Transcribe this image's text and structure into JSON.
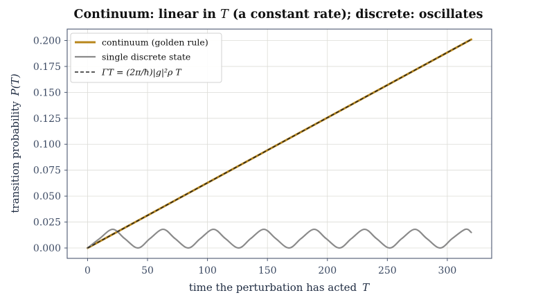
{
  "chart_data": {
    "type": "line",
    "title": "Continuum: linear in T (a constant rate); discrete: oscillates",
    "title_parts": [
      "Continuum: linear in ",
      "T",
      " (a constant rate); discrete: oscillates"
    ],
    "xlabel": "time the perturbation has acted",
    "xlabel_symbol": "T",
    "ylabel": "transition probability",
    "ylabel_symbol": "P(T)",
    "xlim": [
      -17,
      337
    ],
    "ylim": [
      -0.01,
      0.211
    ],
    "xticks": [
      0,
      50,
      100,
      150,
      200,
      250,
      300
    ],
    "yticks": [
      0.0,
      0.025,
      0.05,
      0.075,
      0.1,
      0.125,
      0.15,
      0.175,
      0.2
    ],
    "xtick_labels": [
      "0",
      "50",
      "100",
      "150",
      "200",
      "250",
      "300"
    ],
    "ytick_labels": [
      "0.000",
      "0.025",
      "0.050",
      "0.075",
      "0.100",
      "0.125",
      "0.150",
      "0.175",
      "0.200"
    ],
    "grid": true,
    "legend_position": "top-left",
    "series": [
      {
        "name": "continuum (golden rule)",
        "color": "#b8861b",
        "style": "solid",
        "x": [
          0,
          320
        ],
        "y": [
          0.0,
          0.201
        ]
      },
      {
        "name": "single discrete state",
        "color": "#8a8a8a",
        "style": "solid",
        "x": [
          0,
          10,
          21,
          31,
          42,
          52,
          63,
          73,
          84,
          94,
          105,
          115,
          126,
          136,
          147,
          157,
          168,
          178,
          189,
          199,
          210,
          220,
          231,
          241,
          252,
          262,
          273,
          283,
          294,
          304,
          315,
          320
        ],
        "y": [
          0.0,
          0.009,
          0.018,
          0.009,
          0.0,
          0.009,
          0.018,
          0.009,
          0.0,
          0.009,
          0.018,
          0.009,
          0.0,
          0.009,
          0.018,
          0.009,
          0.0,
          0.009,
          0.018,
          0.009,
          0.0,
          0.009,
          0.018,
          0.009,
          0.0,
          0.009,
          0.018,
          0.009,
          0.0,
          0.009,
          0.018,
          0.015
        ]
      },
      {
        "name": "ΓT = (2π/ħ)|g|²ρ T",
        "color": "#222222",
        "style": "dashed",
        "x": [
          0,
          320
        ],
        "y": [
          0.0,
          0.201
        ]
      }
    ]
  }
}
